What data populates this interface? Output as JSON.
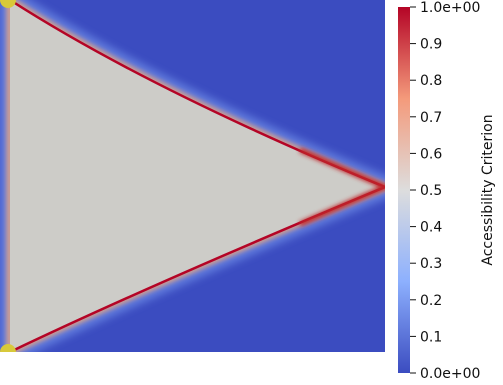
{
  "chart_data": {
    "type": "heatmap",
    "colorbar": {
      "title": "Accessibility Criterion",
      "range": [
        0,
        1
      ],
      "ticks": [
        {
          "value": 1.0,
          "label": "1.0e+00"
        },
        {
          "value": 0.9,
          "label": "0.9"
        },
        {
          "value": 0.8,
          "label": "0.8"
        },
        {
          "value": 0.7,
          "label": "0.7"
        },
        {
          "value": 0.6,
          "label": "0.6"
        },
        {
          "value": 0.5,
          "label": "0.5"
        },
        {
          "value": 0.4,
          "label": "0.4"
        },
        {
          "value": 0.3,
          "label": "0.3"
        },
        {
          "value": 0.2,
          "label": "0.2"
        },
        {
          "value": 0.1,
          "label": "0.1"
        },
        {
          "value": 0.0,
          "label": "0.0e+00"
        }
      ],
      "colormap": "Cool to Warm",
      "colormap_stops": [
        "#3b4cc0",
        "#8db0fe",
        "#dddddd",
        "#f49a7b",
        "#b40426"
      ]
    },
    "field": {
      "exterior_value": 0.0,
      "interior_value": 0.5,
      "boundary_value": 1.0,
      "exterior_color": "#3b4cc0",
      "interior_color": "#cdccc8",
      "boundary_color": "#b40426",
      "marker_color": "#d8c93a"
    }
  }
}
